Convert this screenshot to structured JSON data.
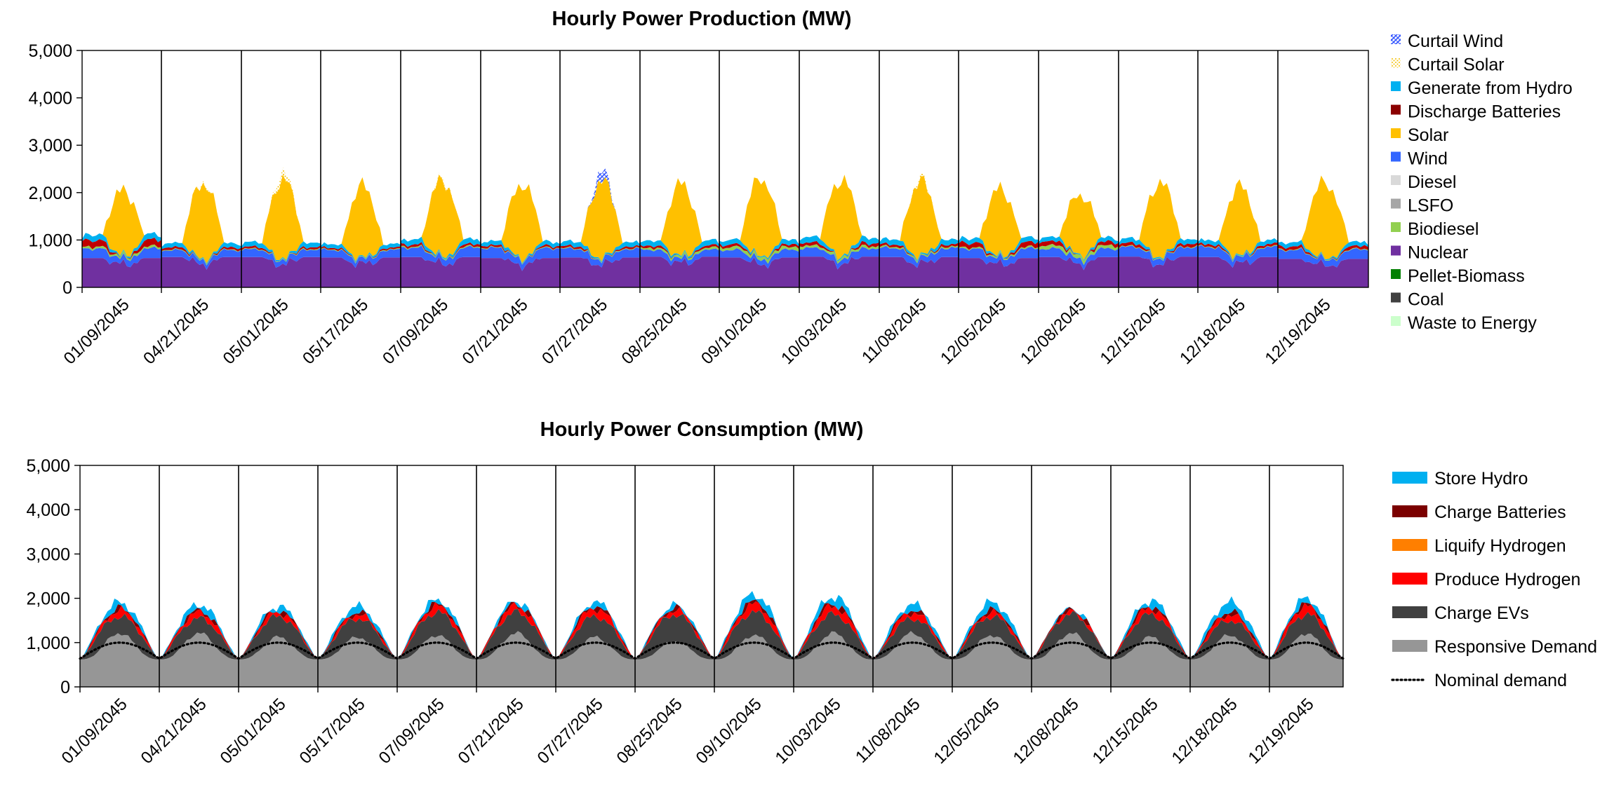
{
  "chart_data": [
    {
      "type": "area",
      "title": "Hourly Power Production (MW)",
      "xlabel": "",
      "ylabel": "",
      "ylim": [
        0,
        5000
      ],
      "yticks": [
        "5,000",
        "4,000",
        "3,000",
        "2,000",
        "1,000",
        "0"
      ],
      "categories": [
        "01/09/2045",
        "04/21/2045",
        "05/01/2045",
        "05/17/2045",
        "07/09/2045",
        "07/21/2045",
        "07/27/2045",
        "08/25/2045",
        "09/10/2045",
        "10/03/2045",
        "11/08/2045",
        "12/05/2045",
        "12/08/2045",
        "12/15/2045",
        "12/18/2045",
        "12/19/2045"
      ],
      "grid": false,
      "legend_position": "right",
      "legend": [
        "Curtail Wind",
        "Curtail Solar",
        "Generate from Hydro",
        "Discharge Batteries",
        "Solar",
        "Wind",
        "Diesel",
        "LSFO",
        "Biodiesel",
        "Nuclear",
        "Pellet-Biomass",
        "Coal",
        "Waste to Energy"
      ],
      "series": [
        {
          "name": "Nuclear",
          "color": "#7030A0",
          "daily": [
            620,
            640,
            640,
            630,
            640,
            620,
            630,
            650,
            630,
            650,
            640,
            620,
            640,
            650,
            640,
            600
          ]
        },
        {
          "name": "Wind",
          "color": "#3366FF",
          "daily": [
            250,
            180,
            200,
            200,
            250,
            260,
            230,
            180,
            200,
            220,
            240,
            250,
            220,
            250,
            260,
            240
          ]
        },
        {
          "name": "Biodiesel",
          "color": "#92D050",
          "daily": [
            60,
            20,
            20,
            20,
            30,
            20,
            20,
            60,
            90,
            70,
            40,
            40,
            100,
            20,
            20,
            20
          ]
        },
        {
          "name": "Discharge Batteries",
          "color": "#C00000",
          "daily": [
            180,
            60,
            50,
            40,
            60,
            50,
            50,
            60,
            70,
            80,
            60,
            130,
            110,
            80,
            60,
            80
          ]
        },
        {
          "name": "Generate from Hydro",
          "color": "#00B0F0",
          "daily": [
            120,
            90,
            100,
            80,
            110,
            90,
            100,
            110,
            100,
            120,
            110,
            100,
            90,
            100,
            90,
            90
          ]
        },
        {
          "name": "Solar",
          "color": "#FFC000",
          "peak": [
            1500,
            1750,
            1800,
            1650,
            1750,
            1700,
            1750,
            1650,
            1800,
            1750,
            1700,
            1550,
            1400,
            1700,
            1600,
            1750
          ]
        },
        {
          "name": "Curtail Solar",
          "color": "#FFE680",
          "peak": [
            0,
            30,
            150,
            0,
            40,
            0,
            0,
            0,
            0,
            0,
            60,
            0,
            0,
            0,
            0,
            0
          ]
        },
        {
          "name": "Curtail Wind",
          "color": "#4F6BFF",
          "peak": [
            0,
            0,
            0,
            0,
            0,
            0,
            220,
            0,
            0,
            0,
            0,
            0,
            0,
            0,
            0,
            0
          ]
        }
      ]
    },
    {
      "type": "area",
      "title": "Hourly Power Consumption (MW)",
      "xlabel": "",
      "ylabel": "",
      "ylim": [
        0,
        5000
      ],
      "yticks": [
        "5,000",
        "4,000",
        "3,000",
        "2,000",
        "1,000",
        "0"
      ],
      "categories": [
        "01/09/2045",
        "04/21/2045",
        "05/01/2045",
        "05/17/2045",
        "07/09/2045",
        "07/21/2045",
        "07/27/2045",
        "08/25/2045",
        "09/10/2045",
        "10/03/2045",
        "11/08/2045",
        "12/05/2045",
        "12/08/2045",
        "12/15/2045",
        "12/18/2045",
        "12/19/2045"
      ],
      "grid": false,
      "legend_position": "right",
      "legend": [
        "Store Hydro",
        "Charge Batteries",
        "Liquify Hydrogen",
        "Produce Hydrogen",
        "Charge EVs",
        "Responsive Demand",
        "Nominal demand"
      ],
      "nominal_demand": {
        "name": "Nominal demand",
        "min": 640,
        "max": 1000
      },
      "series": [
        {
          "name": "Responsive Demand",
          "color": "#969696",
          "peak": [
            1300,
            1300,
            1200,
            1200,
            1250,
            1300,
            1200,
            1100,
            1250,
            1300,
            1300,
            1250,
            1300,
            1200,
            1250,
            1300
          ]
        },
        {
          "name": "Charge EVs",
          "color": "#404040",
          "peak": [
            1700,
            1650,
            1700,
            1650,
            1800,
            1800,
            1700,
            1750,
            1800,
            1750,
            1650,
            1700,
            1750,
            1750,
            1600,
            1750
          ]
        },
        {
          "name": "Produce Hydrogen",
          "color": "#FF0000",
          "peak": [
            1850,
            1800,
            1800,
            1750,
            1950,
            1950,
            1900,
            1850,
            2000,
            1950,
            1800,
            1800,
            1800,
            1900,
            1750,
            1950
          ]
        },
        {
          "name": "Charge Batteries",
          "color": "#7B0000",
          "peak": [
            1880,
            1830,
            1830,
            1780,
            1980,
            1980,
            1930,
            1880,
            2050,
            2000,
            1830,
            1840,
            1850,
            1930,
            1800,
            1980
          ]
        },
        {
          "name": "Store Hydro",
          "color": "#00B0F0",
          "peak": [
            2050,
            2000,
            1950,
            1950,
            2100,
            2050,
            2050,
            1950,
            2250,
            2200,
            2000,
            2050,
            1850,
            2100,
            2050,
            2150
          ]
        }
      ]
    }
  ]
}
